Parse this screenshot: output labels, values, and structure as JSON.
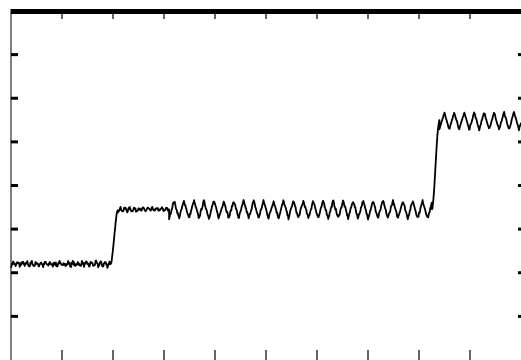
{
  "chart_data": {
    "type": "line",
    "title": "",
    "xlabel": "",
    "ylabel": "",
    "xlim": [
      0,
      10
    ],
    "ylim": [
      0,
      8
    ],
    "x_ticks": [
      1,
      2,
      3,
      4,
      5,
      6,
      7,
      8,
      9
    ],
    "y_ticks": [
      1,
      2,
      3,
      4,
      5,
      6,
      7
    ],
    "grid": false,
    "legend": "none",
    "line_color": "#000000",
    "segments": [
      {
        "x_start": 0.0,
        "x_end": 1.95,
        "level": 2.2,
        "oscillation_amplitude": 0.05,
        "oscillation_period": 0.09,
        "noise": 0.04
      },
      {
        "x_start": 2.1,
        "x_end": 3.1,
        "level": 3.45,
        "oscillation_amplitude": 0.04,
        "oscillation_period": 0.09,
        "noise": 0.03
      },
      {
        "x_start": 3.1,
        "x_end": 8.25,
        "level": 3.45,
        "oscillation_amplitude": 0.2,
        "oscillation_period": 0.195,
        "noise": 0.03
      },
      {
        "x_start": 8.4,
        "x_end": 10.0,
        "level": 5.48,
        "oscillation_amplitude": 0.2,
        "oscillation_period": 0.195,
        "noise": 0.02
      }
    ],
    "steps": [
      {
        "x_start": 1.95,
        "x_end": 2.1,
        "from": 2.2,
        "to": 3.45
      },
      {
        "x_start": 8.25,
        "x_end": 8.4,
        "from": 3.45,
        "to": 5.48
      }
    ]
  }
}
